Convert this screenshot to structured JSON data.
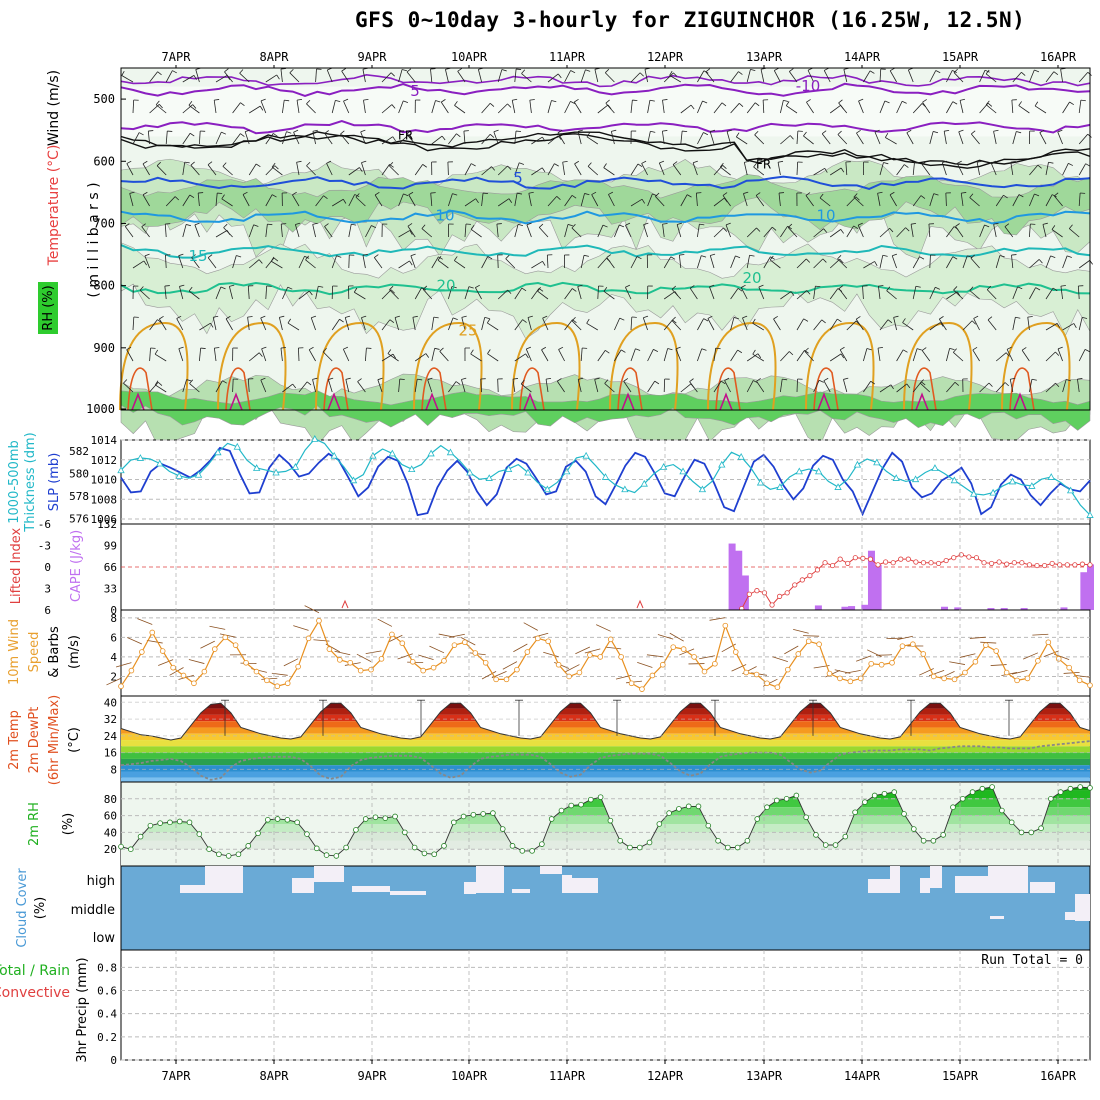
{
  "title": "GFS 0~10day 3-hourly for ZIGUINCHOR (16.25W, 12.5N)",
  "dates": [
    "7APR",
    "8APR",
    "9APR",
    "10APR",
    "11APR",
    "12APR",
    "13APR",
    "14APR",
    "15APR",
    "16APR"
  ],
  "colors": {
    "rh_fill": "#2ecc2e",
    "temp_label": "#e84040",
    "wind_label": "#333333",
    "slp": "#1f3fd0",
    "thickness": "#22b8c8",
    "lifted": "#e04040",
    "cape": "#c070f0",
    "wind10": "#e89020",
    "rh2m": "#20b020",
    "cloud": "#6aaad6",
    "cloud_gap": "#f3eff7",
    "precip_total": "#20b020",
    "precip_conv": "#e04040"
  },
  "labels": {
    "upper_wind": "Wind (m/s)",
    "upper_temp": "Temperature (°C)",
    "upper_rh": "RH (%)",
    "upper_pressure": "( m i l l i b a r s )",
    "thickness": "1000-500mb\nThickness (dm)",
    "slp": "SLP (mb)",
    "lifted": "Lifted Index",
    "cape": "CAPE (J/kg)",
    "wind10_a": "10m Wind",
    "wind10_b": "Speed",
    "wind10_c": "& Barbs",
    "wind10_unit": "(m/s)",
    "temp_a": "2m Temp",
    "temp_b": "2m DewPt",
    "temp_c": "(6hr Min/Max)",
    "temp_unit": "(°C)",
    "rh2m": "2m RH",
    "rh2m_unit": "(%)",
    "cloud": "Cloud Cover",
    "cloud_unit": "(%)",
    "cloud_high": "high",
    "cloud_middle": "middle",
    "cloud_low": "low",
    "precip_a": "Total / Rain",
    "precip_b": "Convective",
    "precip_unit": "3hr Precip (mm)",
    "run_total": "Run Total = 0"
  },
  "chart_data": [
    {
      "type": "heatmap",
      "panel": "upper air cross-section",
      "ylabel": "millibars",
      "yticks": [
        500,
        600,
        700,
        800,
        900,
        1000
      ],
      "isotherm_labels": [
        "5",
        "-10",
        "5",
        "10",
        "10",
        "15",
        "20",
        "20",
        "25"
      ],
      "freezing_label": "FR",
      "rh_contours": [
        30,
        60,
        90
      ]
    },
    {
      "type": "line",
      "panel": "SLP and thickness",
      "slp_ticks": [
        1006,
        1008,
        1010,
        1012,
        1014
      ],
      "thickness_ticks": [
        576,
        578,
        580,
        582
      ],
      "series": [
        {
          "name": "SLP (mb)",
          "values": [
            1010.2,
            1008.7,
            1008.8,
            1010.8,
            1011.6,
            1011.2,
            1010.7,
            1010.2,
            1010.9,
            1011.9,
            1013.2,
            1012.9,
            1010.6,
            1008.6,
            1008.7,
            1011.2,
            1012.5,
            1011.6,
            1010.3,
            1010.6,
            1011.7,
            1012.6,
            1012.0,
            1010.2,
            1008.3,
            1009.2,
            1011.3,
            1012.3,
            1011.9,
            1009.6,
            1006.4,
            1006.6,
            1009.2,
            1010.9,
            1011.9,
            1010.8,
            1008.8,
            1007.4,
            1008.5,
            1011.2,
            1012.1,
            1011.6,
            1010.1,
            1008.5,
            1008.8,
            1011.3,
            1011.9,
            1010.8,
            1008.3,
            1007.5,
            1009.4,
            1011.4,
            1012.7,
            1012.3,
            1010.6,
            1008.6,
            1008.3,
            1010.3,
            1012.0,
            1011.6,
            1009.6,
            1007.2,
            1006.8,
            1009.3,
            1011.8,
            1012.5,
            1011.3,
            1009.4,
            1008.0,
            1009.1,
            1011.4,
            1012.4,
            1012.0,
            1010.0,
            1008.8,
            1006.5,
            1008.8,
            1011.1,
            1012.7,
            1011.8,
            1009.2,
            1008.2,
            1008.6,
            1009.9,
            1010.5,
            1011.2,
            1009.6,
            1006.5,
            1007.2,
            1009.5,
            1010.5,
            1010.0,
            1008.4,
            1007.4,
            1008.6,
            1009.6,
            1009.0,
            1008.8,
            1009.9
          ]
        },
        {
          "name": "1000-500mb Thickness (dm)",
          "values": [
            580.3,
            581.2,
            581.4,
            581.3,
            580.9,
            580.2,
            579.8,
            579.6,
            579.9,
            580.8,
            581.9,
            582.7,
            582.4,
            581.2,
            580.5,
            580.3,
            580.1,
            580.2,
            580.6,
            582.1,
            583.1,
            582.7,
            581.6,
            580.6,
            579.4,
            579.9,
            581.6,
            582.2,
            581.8,
            580.8,
            580.4,
            580.8,
            581.8,
            582.5,
            581.9,
            581.1,
            580.1,
            579.5,
            579.6,
            580.2,
            580.4,
            580.8,
            580.1,
            579.2,
            578.6,
            579.2,
            580.2,
            581.4,
            581.6,
            580.7,
            579.7,
            579.0,
            578.6,
            578.3,
            579.1,
            580.0,
            580.6,
            580.8,
            580.2,
            579.3,
            578.6,
            579.3,
            580.8,
            581.9,
            581.5,
            580.5,
            579.2,
            578.6,
            578.8,
            579.7,
            580.2,
            580.4,
            580.2,
            579.3,
            578.8,
            579.5,
            580.8,
            581.3,
            581.0,
            580.2,
            579.6,
            579.3,
            579.5,
            580.1,
            580.5,
            580.0,
            579.4,
            578.8,
            578.2,
            578.1,
            578.3,
            578.9,
            579.3,
            579.0,
            578.9,
            579.5,
            579.7,
            579.2,
            578.5,
            577.2,
            576.3
          ]
        }
      ]
    },
    {
      "type": "bar",
      "panel": "CAPE and Lifted Index",
      "cape_ticks": [
        0,
        33,
        66,
        99,
        132
      ],
      "lifted_ticks": [
        6,
        3,
        0,
        -3,
        -6
      ],
      "series": [
        {
          "name": "CAPE (J/kg)",
          "values": [
            0,
            0,
            0,
            0,
            0,
            0,
            0,
            0,
            0,
            0,
            0,
            0,
            0,
            0,
            0,
            0,
            0,
            0,
            0,
            0,
            0,
            0,
            0,
            0,
            0,
            0,
            0,
            0,
            0,
            0,
            0,
            0,
            0,
            0,
            0,
            0,
            0,
            0,
            0,
            0,
            0,
            0,
            0,
            0,
            0,
            0,
            0,
            0,
            0,
            0,
            0,
            0,
            0,
            0,
            0,
            0,
            0,
            0,
            0,
            0,
            0,
            0,
            0,
            0,
            0,
            0,
            0,
            0,
            0,
            0,
            0,
            0,
            0,
            0,
            0,
            0,
            0,
            0,
            0,
            0,
            0,
            0,
            0,
            0,
            0,
            0,
            0,
            0,
            0,
            0,
            0,
            0,
            102,
            91,
            53,
            0,
            0,
            0,
            0,
            0,
            0,
            0,
            0,
            0,
            0,
            7,
            0,
            0,
            0,
            5,
            6,
            0,
            8,
            91,
            69,
            0,
            0,
            0,
            0,
            0,
            0,
            0,
            0,
            0,
            5,
            0,
            4,
            0,
            0,
            0,
            0,
            3,
            0,
            3,
            0,
            0,
            3,
            0,
            0,
            0,
            0,
            0,
            4,
            0,
            0,
            58,
            70
          ]
        },
        {
          "name": "Lifted Index",
          "values": [
            6,
            6,
            6,
            6,
            6,
            6,
            6,
            6,
            6,
            6,
            6,
            6,
            6,
            6,
            6,
            6,
            6,
            6,
            6,
            6,
            6,
            6,
            6,
            6,
            6,
            6,
            6,
            6,
            6,
            6,
            6,
            6,
            6,
            6,
            6,
            6,
            6,
            6,
            6,
            6,
            6,
            6,
            6,
            6,
            6,
            6,
            6,
            6,
            6,
            6,
            6,
            6,
            6,
            6,
            6,
            6,
            6,
            6,
            6,
            6,
            6,
            6,
            6,
            6,
            6,
            6,
            6,
            6,
            6,
            6,
            6,
            6,
            6,
            6,
            6,
            6,
            6,
            6,
            6,
            6,
            6,
            6,
            5.8,
            3.8,
            3.3,
            3.6,
            5.3,
            4.1,
            3.6,
            2.5,
            1.8,
            1.2,
            0.4,
            -0.6,
            -0.2,
            -1.1,
            -0.5,
            -1.3,
            -1.2,
            -1.1,
            -0.3,
            -0.7,
            -0.6,
            -1.1,
            -1.1,
            -0.7,
            -0.6,
            -0.6,
            -0.5,
            -0.9,
            -1.3,
            -1.7,
            -1.4,
            -1.3,
            -0.6,
            -0.5,
            -0.7,
            -0.4,
            -0.6,
            -0.6,
            -0.3,
            -0.2,
            -0.2,
            -0.5,
            -0.3,
            -0.3,
            -0.3,
            -0.4,
            -0.3
          ]
        }
      ]
    },
    {
      "type": "line",
      "panel": "10m wind speed",
      "yticks": [
        2,
        4,
        6,
        8
      ],
      "values": [
        1.0,
        2.6,
        4.5,
        6.5,
        4.6,
        2.9,
        2.1,
        1.3,
        2.5,
        4.8,
        6.0,
        5.2,
        3.4,
        2.5,
        1.6,
        1.0,
        1.3,
        3.0,
        5.9,
        7.7,
        4.8,
        3.7,
        3.4,
        2.6,
        2.7,
        3.8,
        6.3,
        5.4,
        3.5,
        2.6,
        2.9,
        3.6,
        5.2,
        5.5,
        4.4,
        3.4,
        1.7,
        1.7,
        2.7,
        4.5,
        5.9,
        5.6,
        3.2,
        2.0,
        2.4,
        4.2,
        4.0,
        5.8,
        4.0,
        1.3,
        0.7,
        2.1,
        3.2,
        5.0,
        4.8,
        4.0,
        2.5,
        3.3,
        7.2,
        4.5,
        2.4,
        2.2,
        1.3,
        0.9,
        2.7,
        4.3,
        5.6,
        5.3,
        2.3,
        1.8,
        1.5,
        1.8,
        3.3,
        3.2,
        3.4,
        5.1,
        5.3,
        4.3,
        2.0,
        1.8,
        1.7,
        2.4,
        3.5,
        5.2,
        4.6,
        2.4,
        1.6,
        1.8,
        3.6,
        5.5,
        3.8,
        2.9,
        1.6,
        1.1
      ]
    },
    {
      "type": "area",
      "panel": "2m temperature and dewpoint",
      "yticks": [
        8,
        16,
        24,
        32,
        40
      ],
      "series": [
        {
          "name": "2m Temp",
          "values": [
            27.5,
            26.0,
            24.5,
            24.0,
            23.0,
            22.0,
            23.0,
            29.0,
            35.0,
            39.0,
            39.5,
            35.0,
            28.0,
            26.5,
            25.0,
            24.0,
            23.0,
            22.5,
            23.5,
            29.5,
            35.5,
            39.5,
            39.5,
            35.0,
            28.0,
            26.5,
            25.0,
            24.0,
            23.0,
            22.5,
            23.5,
            29.5,
            35.5,
            39.5,
            39.5,
            35.0,
            28.0,
            26.5,
            25.0,
            24.0,
            23.0,
            22.5,
            23.5,
            29.5,
            35.5,
            39.5,
            39.5,
            35.0,
            28.0,
            26.5,
            25.0,
            24.0,
            23.0,
            22.5,
            23.5,
            29.5,
            35.5,
            39.5,
            39.5,
            35.0,
            28.0,
            26.5,
            25.0,
            24.0,
            23.0,
            22.5,
            23.5,
            29.5,
            35.5,
            39.5,
            39.5,
            35.0,
            28.0,
            26.5,
            25.0,
            24.0,
            23.0,
            22.5,
            23.5,
            29.5,
            35.5,
            39.5,
            39.5,
            35.0,
            28.0,
            26.5,
            25.0,
            24.0,
            23.0,
            22.5,
            23.5,
            29.5,
            35.5,
            39.5,
            39.5,
            35.0,
            28.0,
            26.5
          ]
        },
        {
          "name": "2m DewPt",
          "values": [
            10.0,
            10.5,
            11.0,
            12.0,
            12.5,
            13.0,
            12.0,
            9.0,
            5.0,
            3.0,
            4.0,
            9.0,
            12.0,
            13.0,
            13.5,
            14.0,
            14.0,
            14.0,
            13.0,
            9.5,
            5.0,
            3.5,
            4.5,
            9.5,
            12.5,
            13.5,
            14.0,
            14.5,
            14.5,
            14.5,
            13.5,
            10.0,
            6.0,
            4.0,
            5.0,
            9.5,
            13.0,
            14.0,
            14.5,
            15.0,
            15.0,
            15.0,
            14.0,
            10.5,
            6.5,
            4.5,
            5.5,
            10.0,
            13.5,
            14.5,
            15.0,
            15.5,
            15.5,
            15.5,
            14.5,
            11.0,
            7.0,
            5.0,
            6.0,
            10.5,
            14.0,
            15.0,
            15.5,
            16.0,
            16.0,
            16.0,
            15.0,
            11.5,
            8.0,
            6.5,
            7.5,
            11.5,
            15.0,
            16.0,
            16.5,
            17.0,
            17.0,
            17.0,
            17.5,
            17.5,
            17.5,
            17.0,
            18.0,
            18.5,
            19.0,
            19.0,
            19.0,
            18.5,
            18.5,
            18.0,
            18.0,
            18.0,
            19.0,
            19.5,
            20.0,
            20.5,
            21.0,
            21.5
          ]
        }
      ]
    },
    {
      "type": "area",
      "panel": "2m relative humidity",
      "yticks": [
        20,
        40,
        60,
        80
      ],
      "values": [
        23,
        20,
        35,
        48,
        51,
        52,
        53,
        52,
        38,
        20,
        14,
        12,
        14,
        24,
        39,
        55,
        56,
        55,
        52,
        38,
        21,
        13,
        12,
        22,
        43,
        56,
        58,
        57,
        59,
        40,
        22,
        15,
        14,
        24,
        52,
        59,
        61,
        62,
        63,
        44,
        24,
        18,
        18,
        26,
        56,
        66,
        72,
        73,
        79,
        82,
        54,
        30,
        22,
        22,
        28,
        50,
        63,
        68,
        71,
        71,
        48,
        30,
        22,
        22,
        30,
        56,
        70,
        78,
        80,
        84,
        58,
        37,
        25,
        25,
        35,
        64,
        76,
        84,
        86,
        88,
        62,
        44,
        30,
        30,
        37,
        70,
        80,
        88,
        92,
        94,
        66,
        52,
        40,
        40,
        45,
        80,
        88,
        92,
        94,
        93
      ]
    },
    {
      "type": "heatmap",
      "panel": "cloud cover",
      "levels": [
        "high",
        "middle",
        "low"
      ]
    },
    {
      "type": "bar",
      "panel": "3hr precipitation",
      "yticks": [
        0,
        0.2,
        0.4,
        0.6,
        0.8
      ],
      "values": []
    }
  ]
}
